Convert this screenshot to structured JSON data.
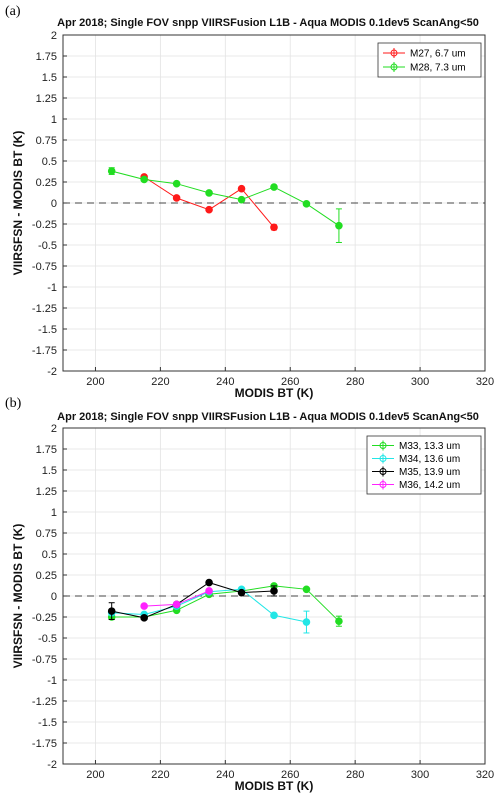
{
  "chart_data": [
    {
      "panel_label": "(a)",
      "type": "line",
      "title": "Apr 2018; Single FOV snpp VIIRSFusion L1B - Aqua MODIS 0.1dev5 ScanAng<50",
      "xlabel": "MODIS BT (K)",
      "ylabel": "VIIRSFSN - MODIS BT (K)",
      "xlim": [
        190,
        320
      ],
      "ylim": [
        -2,
        2
      ],
      "xticks": [
        "200",
        "220",
        "240",
        "260",
        "280",
        "300",
        "320"
      ],
      "yticks": [
        "2",
        "1.75",
        "1.5",
        "1.25",
        "1",
        "0.75",
        "0.5",
        "0.25",
        "0",
        "-0.25",
        "-0.5",
        "-0.75",
        "-1",
        "-1.25",
        "-1.5",
        "-1.75",
        "-2"
      ],
      "grid": true,
      "reference_line_y": 0,
      "legend_position": "top-right",
      "series": [
        {
          "name": "M27, 6.7 um",
          "color": "#ff1a1a",
          "x": [
            215,
            225,
            235,
            245,
            255
          ],
          "y": [
            0.31,
            0.06,
            -0.08,
            0.17,
            -0.29
          ],
          "err": [
            0.02,
            0.02,
            0.02,
            0.02,
            0.03
          ]
        },
        {
          "name": "M28, 7.3 um",
          "color": "#22dd22",
          "x": [
            205,
            215,
            225,
            235,
            245,
            255,
            265,
            275
          ],
          "y": [
            0.38,
            0.28,
            0.23,
            0.12,
            0.04,
            0.19,
            -0.01,
            -0.27
          ],
          "err": [
            0.04,
            0.02,
            0.02,
            0.02,
            0.02,
            0.02,
            0.02,
            0.2
          ]
        }
      ]
    },
    {
      "panel_label": "(b)",
      "type": "line",
      "title": "Apr 2018; Single FOV snpp VIIRSFusion L1B - Aqua MODIS 0.1dev5 ScanAng<50",
      "xlabel": "MODIS BT (K)",
      "ylabel": "VIIRSFSN - MODIS BT (K)",
      "xlim": [
        190,
        320
      ],
      "ylim": [
        -2,
        2
      ],
      "xticks": [
        "200",
        "220",
        "240",
        "260",
        "280",
        "300",
        "320"
      ],
      "yticks": [
        "2",
        "1.75",
        "1.5",
        "1.25",
        "1",
        "0.75",
        "0.5",
        "0.25",
        "0",
        "-0.25",
        "-0.5",
        "-0.75",
        "-1",
        "-1.25",
        "-1.5",
        "-1.75",
        "-2"
      ],
      "grid": true,
      "reference_line_y": 0,
      "legend_position": "top-right",
      "series": [
        {
          "name": "M33, 13.3 um",
          "color": "#22dd22",
          "x": [
            205,
            215,
            225,
            235,
            245,
            255,
            265,
            275
          ],
          "y": [
            -0.25,
            -0.25,
            -0.17,
            0.02,
            0.06,
            0.12,
            0.08,
            -0.3
          ],
          "err": [
            0.03,
            0.02,
            0.02,
            0.02,
            0.02,
            0.02,
            0.02,
            0.06
          ]
        },
        {
          "name": "M34, 13.6 um",
          "color": "#22e6e6",
          "x": [
            205,
            215,
            225,
            235,
            245,
            255,
            265
          ],
          "y": [
            -0.2,
            -0.22,
            -0.12,
            0.05,
            0.08,
            -0.23,
            -0.31
          ],
          "err": [
            0.03,
            0.02,
            0.02,
            0.02,
            0.02,
            0.02,
            0.13
          ]
        },
        {
          "name": "M35, 13.9 um",
          "color": "#000000",
          "x": [
            205,
            215,
            225,
            235,
            245,
            255
          ],
          "y": [
            -0.18,
            -0.26,
            -0.1,
            0.16,
            0.04,
            0.06
          ],
          "err": [
            0.1,
            0.02,
            0.02,
            0.02,
            0.02,
            0.06
          ]
        },
        {
          "name": "M36, 14.2 um",
          "color": "#ff22ff",
          "x": [
            215,
            225,
            235
          ],
          "y": [
            -0.12,
            -0.1,
            0.06
          ],
          "err": [
            0.02,
            0.02,
            0.02
          ]
        }
      ]
    }
  ]
}
